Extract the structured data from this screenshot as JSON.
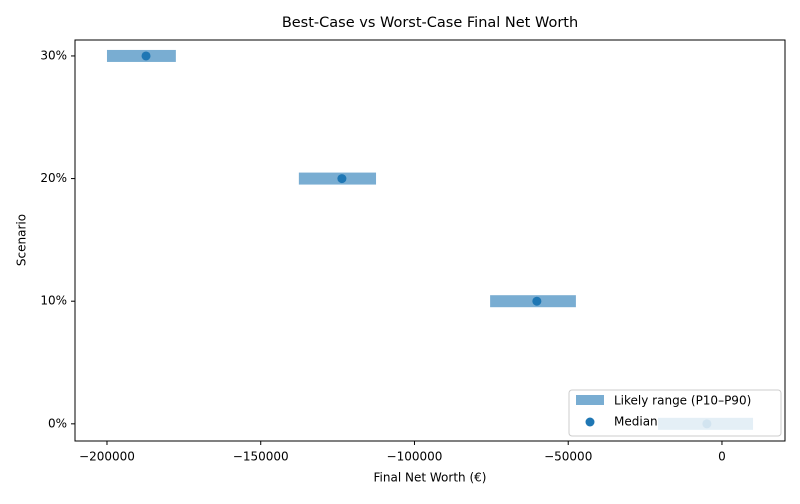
{
  "chart_data": {
    "type": "range",
    "title": "Best-Case vs Worst-Case Final Net Worth",
    "xlabel": "Final Net Worth (€)",
    "ylabel": "Scenario",
    "categories": [
      "0%",
      "10%",
      "20%",
      "30%"
    ],
    "series": [
      {
        "name": "Likely range (P10–P90)",
        "color": "#1f77b4",
        "low": [
          -20800,
          -75400,
          -137600,
          -200000
        ],
        "high": [
          10100,
          -47500,
          -112500,
          -177600
        ]
      },
      {
        "name": "Median",
        "color": "#1f77b4",
        "values": [
          -4900,
          -60200,
          -123600,
          -187300
        ]
      }
    ],
    "xlim": [
      -210400,
      20500
    ],
    "xticks": [
      {
        "value": -200000,
        "label": "−200000"
      },
      {
        "value": -150000,
        "label": "−150000"
      },
      {
        "value": -100000,
        "label": "−100000"
      },
      {
        "value": -50000,
        "label": "−50000"
      },
      0
    ],
    "legend": "lower right"
  }
}
